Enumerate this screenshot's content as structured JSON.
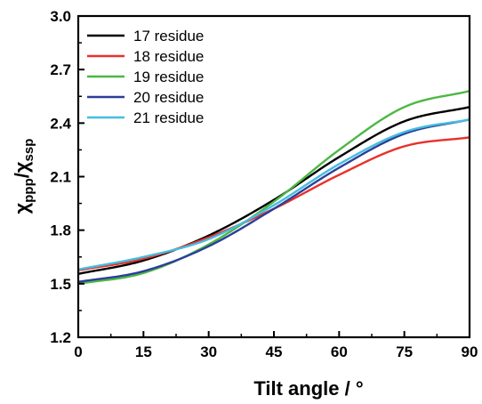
{
  "chart_data": {
    "type": "line",
    "xlabel": "Tilt angle / °",
    "ylabel": {
      "main": "χ",
      "sub1": "ppp",
      "sep": "/χ",
      "sub2": "ssp"
    },
    "xlim": [
      0,
      90
    ],
    "ylim": [
      1.2,
      3.0
    ],
    "xticks": [
      "0",
      "15",
      "30",
      "45",
      "60",
      "75",
      "90"
    ],
    "yticks": [
      "1.2",
      "1.5",
      "1.8",
      "2.1",
      "2.4",
      "2.7",
      "3.0"
    ],
    "grid": false,
    "legend": "top-left",
    "x": [
      0,
      15,
      30,
      45,
      60,
      75,
      90
    ],
    "series": [
      {
        "name": "17 residue",
        "color": "#000000",
        "values": [
          1.555,
          1.63,
          1.77,
          1.97,
          2.21,
          2.41,
          2.49
        ]
      },
      {
        "name": "18 residue",
        "color": "#e8312a",
        "values": [
          1.575,
          1.64,
          1.76,
          1.92,
          2.11,
          2.27,
          2.32
        ]
      },
      {
        "name": "19 residue",
        "color": "#4cb843",
        "values": [
          1.5,
          1.56,
          1.72,
          1.96,
          2.25,
          2.49,
          2.58
        ]
      },
      {
        "name": "20 residue",
        "color": "#2b3f9a",
        "values": [
          1.51,
          1.57,
          1.71,
          1.92,
          2.15,
          2.34,
          2.42
        ]
      },
      {
        "name": "21 residue",
        "color": "#45bde0",
        "values": [
          1.58,
          1.65,
          1.75,
          1.94,
          2.17,
          2.35,
          2.42
        ]
      }
    ]
  }
}
